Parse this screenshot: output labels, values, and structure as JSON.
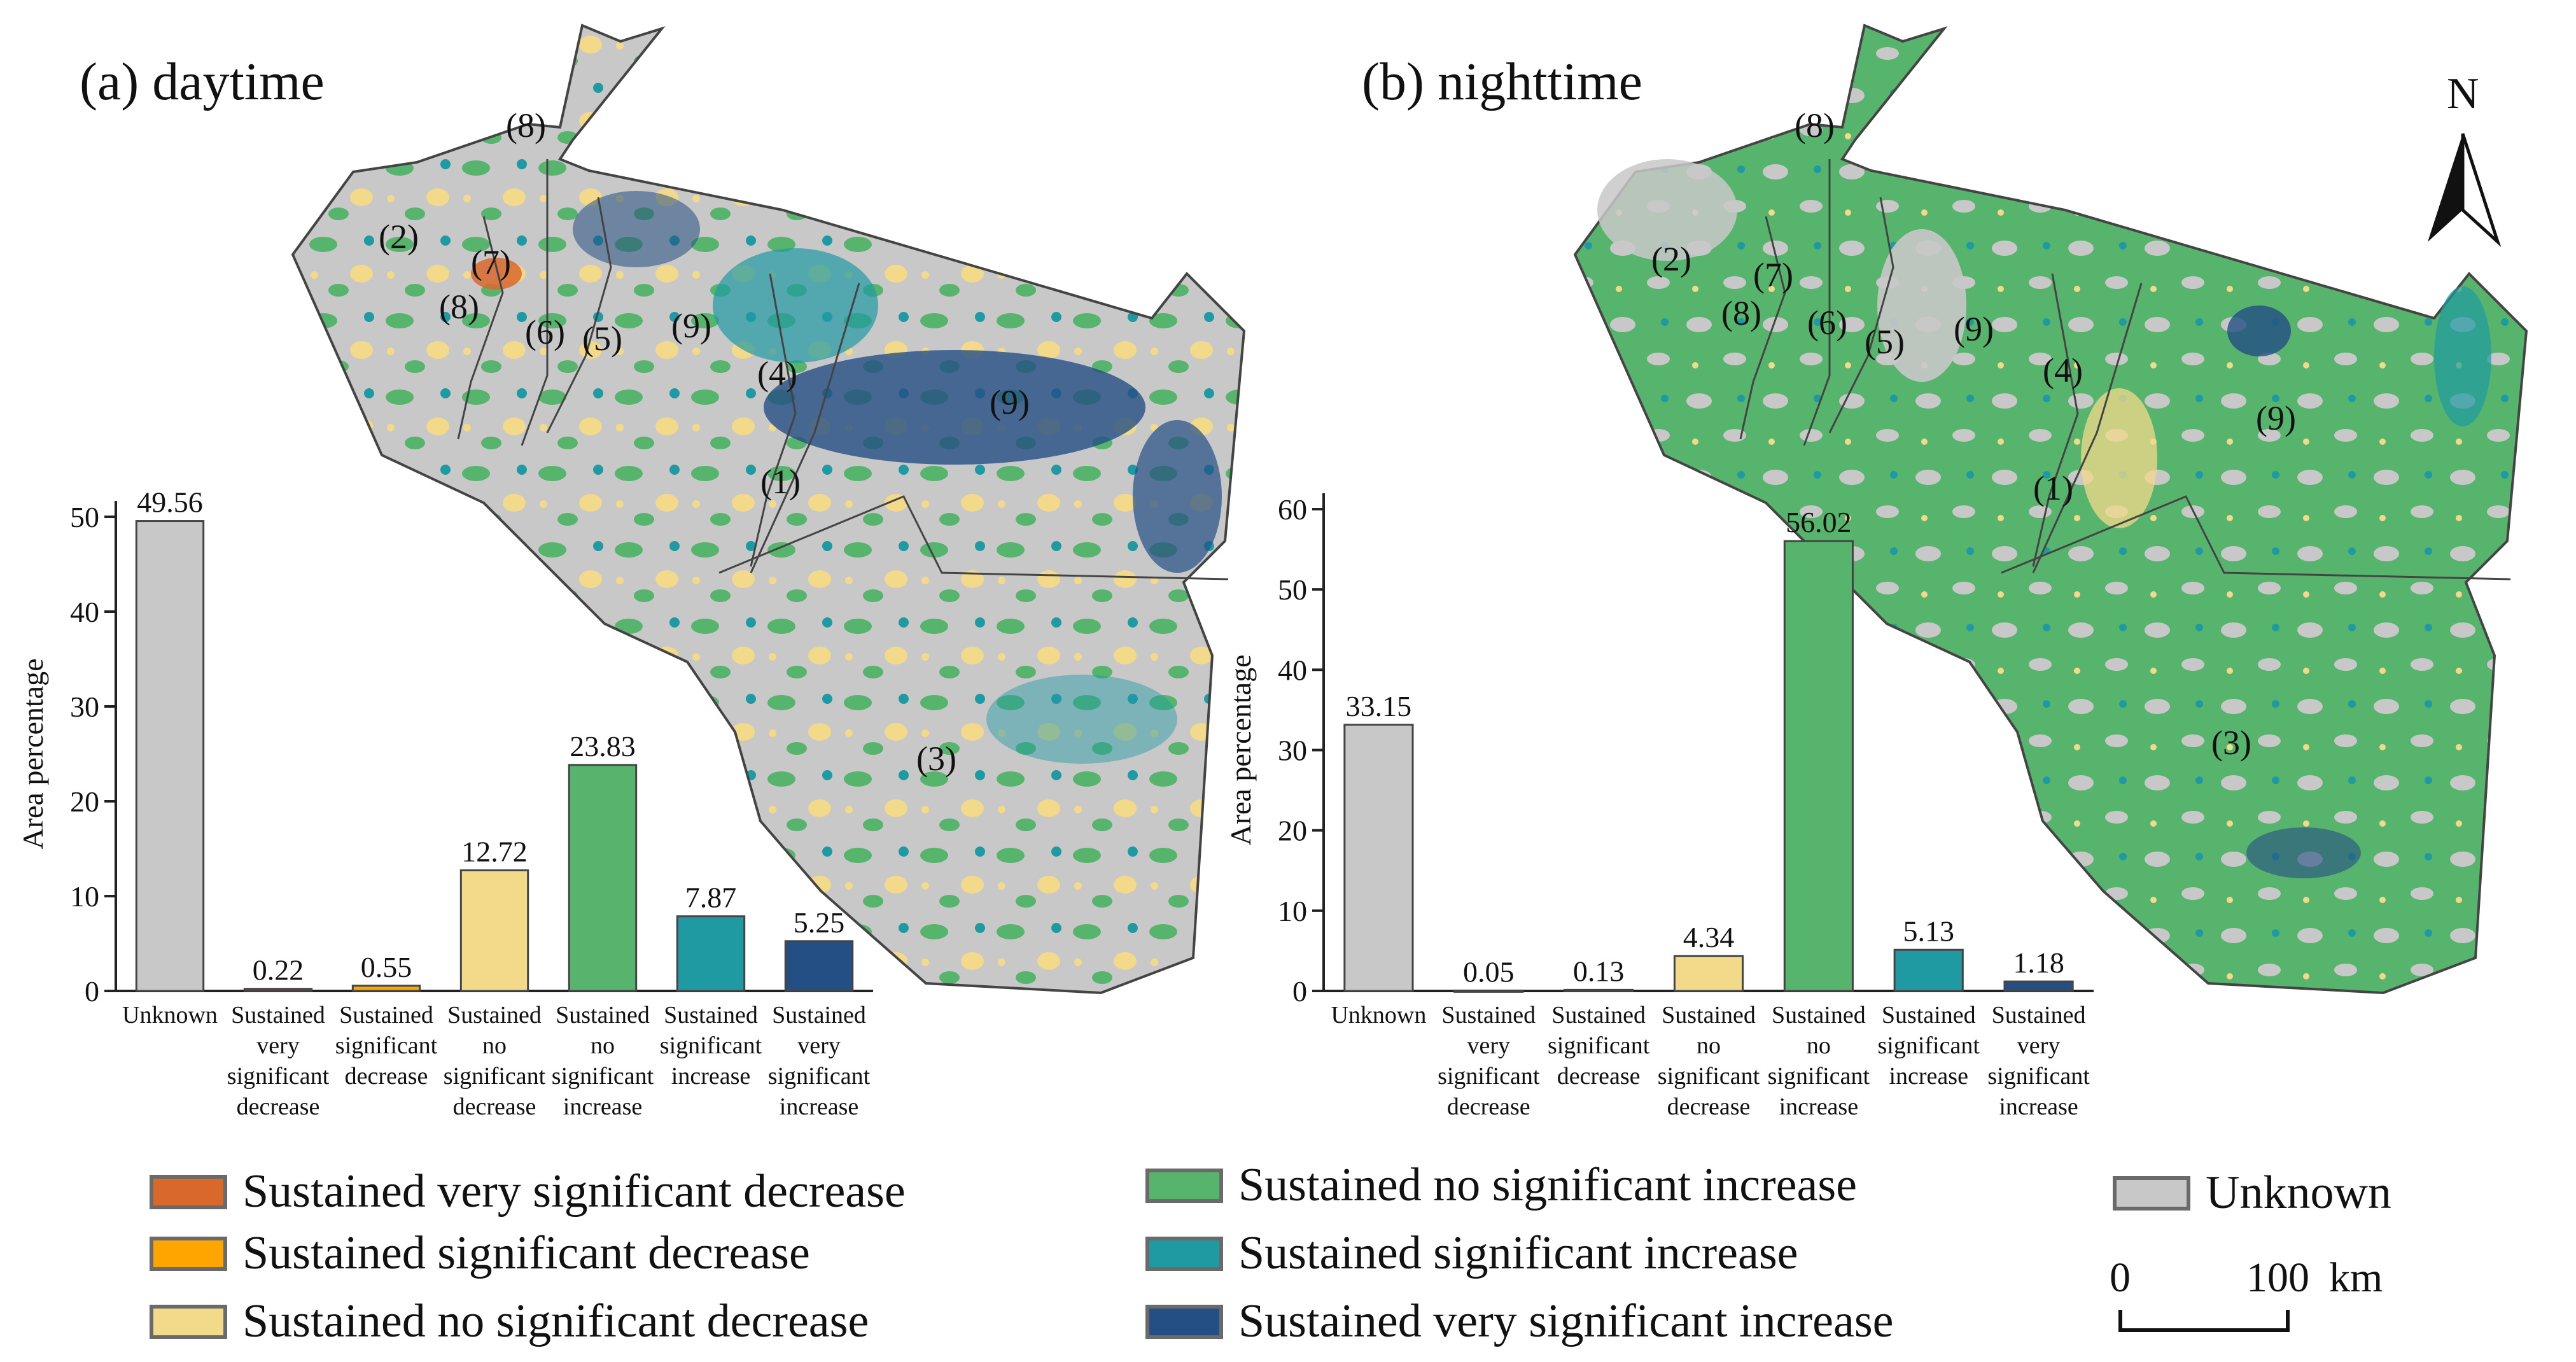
{
  "panels": [
    {
      "title": "(a) daytime",
      "ylabel": "Area percentage",
      "categories": [
        "Unknown",
        "Sustained very significant decrease",
        "Sustained significant decrease",
        "Sustained no significant decrease",
        "Sustained no significant increase",
        "Sustained significant increase",
        "Sustained very significant increase"
      ],
      "ylim": [
        0,
        50
      ],
      "yticks": [
        0,
        10,
        20,
        30,
        40,
        50
      ],
      "values": [
        49.56,
        0.22,
        0.55,
        12.72,
        23.83,
        7.87,
        5.25
      ],
      "labels": [
        "49.56",
        "0.22",
        "0.55",
        "12.72",
        "23.83",
        "7.87",
        "5.25"
      ]
    },
    {
      "title": "(b) nighttime",
      "ylabel": "Area percentage",
      "categories": [
        "Unknown",
        "Sustained very significant decrease",
        "Sustained significant decrease",
        "Sustained no significant decrease",
        "Sustained no significant increase",
        "Sustained significant increase",
        "Sustained very significant increase"
      ],
      "ylim": [
        0,
        60
      ],
      "yticks": [
        0,
        10,
        20,
        30,
        40,
        50,
        60
      ],
      "values": [
        33.15,
        0.05,
        0.13,
        4.34,
        56.02,
        5.13,
        1.18
      ],
      "labels": [
        "33.15",
        "0.05",
        "0.13",
        "4.34",
        "56.02",
        "5.13",
        "1.18"
      ]
    }
  ],
  "colors": [
    "#c8c8c8",
    "#d9682b",
    "#ffa500",
    "#f3d98a",
    "#57b46d",
    "#1f9aa3",
    "#244f84"
  ],
  "region_labels": [
    "(1)",
    "(2)",
    "(3)",
    "(4)",
    "(5)",
    "(6)",
    "(7)",
    "(8)",
    "(8)",
    "(9)",
    "(9)"
  ],
  "legend": [
    {
      "label": "Sustained very significant decrease",
      "color": "#d9682b"
    },
    {
      "label": "Sustained significant decrease",
      "color": "#ffa500"
    },
    {
      "label": "Sustained no significant decrease",
      "color": "#f3d98a"
    },
    {
      "label": "Sustained no significant increase",
      "color": "#57b46d"
    },
    {
      "label": "Sustained significant increase",
      "color": "#1f9aa3"
    },
    {
      "label": "Sustained very significant increase",
      "color": "#244f84"
    },
    {
      "label": "Unknown",
      "color": "#c8c8c8"
    }
  ],
  "north_label": "N",
  "scale": {
    "start": "0",
    "end": "100",
    "unit": "km"
  }
}
